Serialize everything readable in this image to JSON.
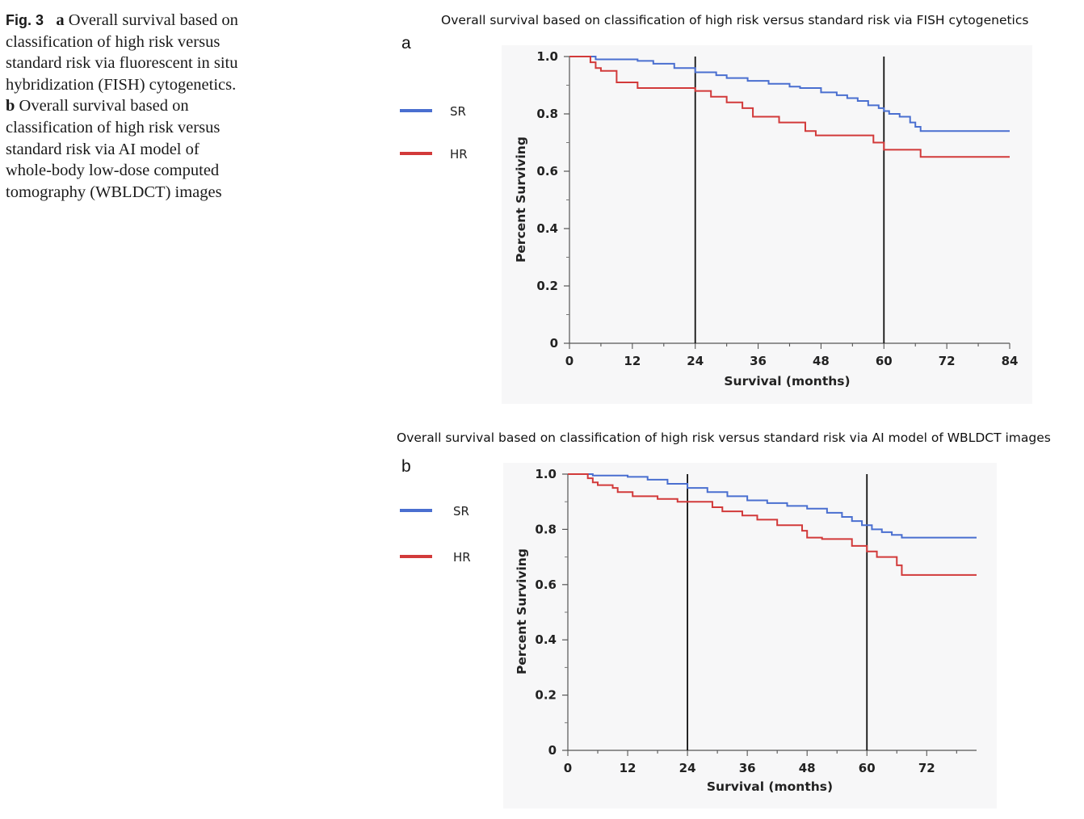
{
  "caption": {
    "fig_label": "Fig. 3",
    "a_label": "a",
    "a_text": "Overall survival based on classification of high risk versus standard risk via fluorescent in situ hybridization (FISH) cytogenetics.",
    "b_label": "b",
    "b_text": "Overall survival based on classification of high risk versus standard risk via AI model of whole-body low-dose computed tomography (WBLDCT) images"
  },
  "colors": {
    "SR": "#4a6fd0",
    "HR": "#d23a3a"
  },
  "chart_data": [
    {
      "type": "line",
      "panel": "a",
      "title": "Overall survival based on classification of high risk versus standard risk via FISH cytogenetics",
      "xlabel": "Survival (months)",
      "ylabel": "Percent Surviving",
      "xlim": [
        0,
        84
      ],
      "ylim": [
        0,
        1.0
      ],
      "xticks": [
        0,
        12,
        24,
        36,
        48,
        60,
        72,
        84
      ],
      "yticks": [
        0,
        0.2,
        0.4,
        0.6,
        0.8,
        1.0
      ],
      "ytick_labels": [
        "0",
        "0.2",
        "0.4",
        "0.6",
        "0.8",
        "1.0"
      ],
      "vlines": [
        24,
        60
      ],
      "legend": {
        "position": "left",
        "entries": [
          "SR",
          "HR"
        ]
      },
      "series": [
        {
          "name": "SR",
          "step": true,
          "x": [
            0,
            5,
            13,
            16,
            20,
            24,
            28,
            30,
            34,
            38,
            42,
            44,
            48,
            51,
            53,
            55,
            57,
            59,
            60,
            61,
            63,
            65,
            66,
            67,
            84
          ],
          "y": [
            1.0,
            0.99,
            0.985,
            0.975,
            0.96,
            0.945,
            0.935,
            0.925,
            0.915,
            0.905,
            0.895,
            0.89,
            0.875,
            0.865,
            0.855,
            0.845,
            0.83,
            0.82,
            0.81,
            0.8,
            0.79,
            0.77,
            0.755,
            0.74,
            0.74
          ]
        },
        {
          "name": "HR",
          "step": true,
          "x": [
            0,
            4,
            5,
            6,
            9,
            13,
            24,
            27,
            30,
            33,
            35,
            40,
            45,
            47,
            58,
            60,
            67,
            84
          ],
          "y": [
            1.0,
            0.98,
            0.96,
            0.95,
            0.91,
            0.89,
            0.88,
            0.86,
            0.84,
            0.82,
            0.79,
            0.77,
            0.74,
            0.725,
            0.7,
            0.675,
            0.65,
            0.65
          ]
        }
      ]
    },
    {
      "type": "line",
      "panel": "b",
      "title": "Overall survival based on classification of high risk versus standard risk via AI model of WBLDCT images",
      "xlabel": "Survival (months)",
      "ylabel": "Percent Surviving",
      "xlim": [
        0,
        82
      ],
      "ylim": [
        0,
        1.0
      ],
      "xticks": [
        0,
        12,
        24,
        36,
        48,
        60,
        72
      ],
      "yticks": [
        0,
        0.2,
        0.4,
        0.6,
        0.8,
        1.0
      ],
      "ytick_labels": [
        "0",
        "0.2",
        "0.4",
        "0.6",
        "0.8",
        "1.0"
      ],
      "vlines": [
        24,
        60
      ],
      "legend": {
        "position": "left",
        "entries": [
          "SR",
          "HR"
        ]
      },
      "series": [
        {
          "name": "SR",
          "step": true,
          "x": [
            0,
            5,
            12,
            16,
            20,
            24,
            28,
            32,
            36,
            40,
            44,
            48,
            52,
            55,
            57,
            59,
            61,
            63,
            65,
            67,
            82
          ],
          "y": [
            1.0,
            0.995,
            0.99,
            0.98,
            0.965,
            0.95,
            0.935,
            0.92,
            0.905,
            0.895,
            0.885,
            0.875,
            0.86,
            0.845,
            0.83,
            0.815,
            0.8,
            0.79,
            0.78,
            0.77,
            0.77
          ]
        },
        {
          "name": "HR",
          "step": true,
          "x": [
            0,
            4,
            5,
            6,
            9,
            10,
            13,
            18,
            22,
            24,
            29,
            31,
            35,
            38,
            42,
            47,
            48,
            51,
            57,
            60,
            62,
            66,
            67,
            82
          ],
          "y": [
            1.0,
            0.985,
            0.97,
            0.96,
            0.95,
            0.935,
            0.92,
            0.91,
            0.9,
            0.9,
            0.88,
            0.865,
            0.85,
            0.835,
            0.815,
            0.795,
            0.77,
            0.765,
            0.74,
            0.72,
            0.7,
            0.67,
            0.635,
            0.635
          ]
        }
      ]
    }
  ]
}
